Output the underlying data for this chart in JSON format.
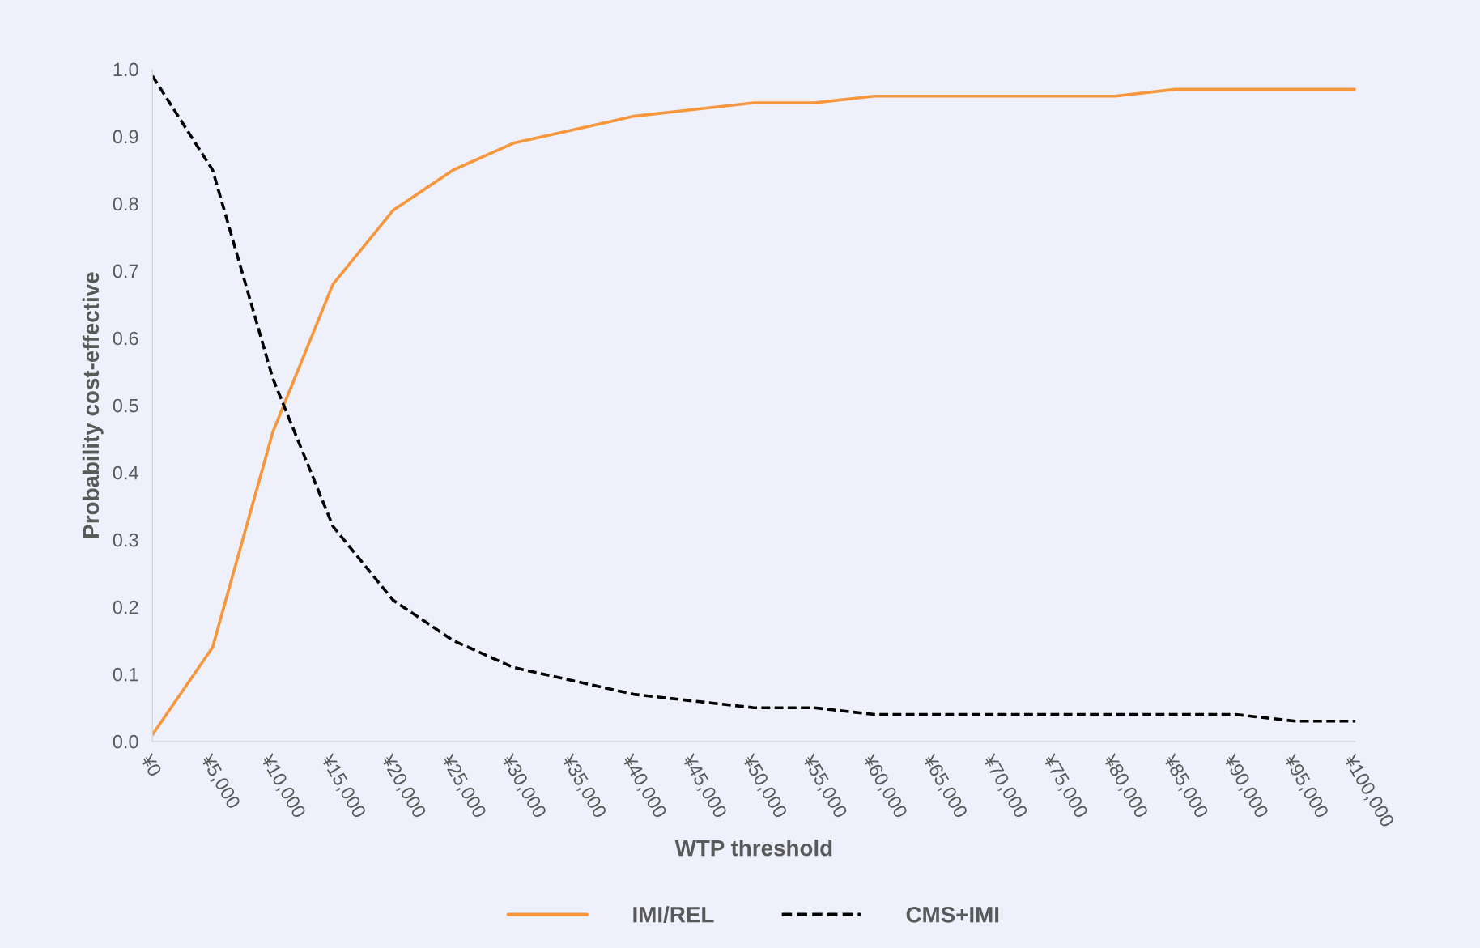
{
  "chart_data": {
    "type": "line",
    "xlabel": "WTP threshold",
    "ylabel": "Probability cost-effective",
    "categories": [
      "¥0",
      "¥5,000",
      "¥10,000",
      "¥15,000",
      "¥20,000",
      "¥25,000",
      "¥30,000",
      "¥35,000",
      "¥40,000",
      "¥45,000",
      "¥50,000",
      "¥55,000",
      "¥60,000",
      "¥65,000",
      "¥70,000",
      "¥75,000",
      "¥80,000",
      "¥85,000",
      "¥90,000",
      "¥95,000",
      "¥100,000"
    ],
    "series": [
      {
        "name": "IMI/REL",
        "color": "#f7963a",
        "line_style": "solid",
        "values": [
          0.01,
          0.14,
          0.46,
          0.68,
          0.79,
          0.85,
          0.89,
          0.91,
          0.93,
          0.94,
          0.95,
          0.95,
          0.96,
          0.96,
          0.96,
          0.96,
          0.96,
          0.97,
          0.97,
          0.97,
          0.97
        ]
      },
      {
        "name": "CMS+IMI",
        "color": "#000000",
        "line_style": "dashed",
        "values": [
          0.99,
          0.85,
          0.54,
          0.32,
          0.21,
          0.15,
          0.11,
          0.09,
          0.07,
          0.06,
          0.05,
          0.05,
          0.04,
          0.04,
          0.04,
          0.04,
          0.04,
          0.04,
          0.04,
          0.03,
          0.03
        ]
      }
    ],
    "ylim": [
      0,
      1
    ],
    "yticks": [
      {
        "value": 0,
        "label": "0.0"
      },
      {
        "value": 0.1,
        "label": "0.1"
      },
      {
        "value": 0.2,
        "label": "0.2"
      },
      {
        "value": 0.3,
        "label": "0.3"
      },
      {
        "value": 0.4,
        "label": "0.4"
      },
      {
        "value": 0.5,
        "label": "0.5"
      },
      {
        "value": 0.6,
        "label": "0.6"
      },
      {
        "value": 0.7,
        "label": "0.7"
      },
      {
        "value": 0.8,
        "label": "0.8"
      },
      {
        "value": 0.9,
        "label": "0.9"
      },
      {
        "value": 1,
        "label": "1.0"
      }
    ],
    "grid": false,
    "legend": "bottom",
    "marker": "none"
  }
}
